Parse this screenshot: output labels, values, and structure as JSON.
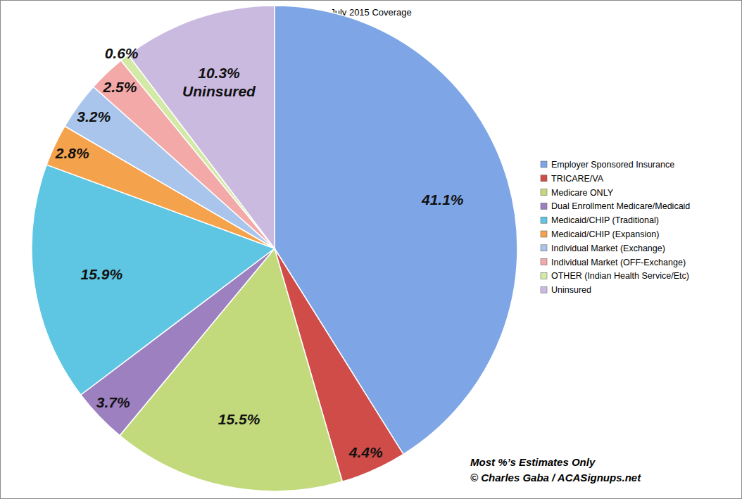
{
  "chart_data": {
    "type": "pie",
    "title": "July 2015 Coverage",
    "categories": [
      "Employer Sponsored Insurance",
      "TRICARE/VA",
      "Medicare ONLY",
      "Dual Enrollment Medicare/Medicaid",
      "Medicaid/CHIP (Traditional)",
      "Medicaid/CHIP (Expansion)",
      "Individual Market (Exchange)",
      "Individual Market (OFF-Exchange)",
      "OTHER (Indian Health Service/Etc)",
      "Uninsured"
    ],
    "values": [
      41.1,
      4.4,
      15.5,
      3.7,
      15.9,
      2.8,
      3.2,
      2.5,
      0.6,
      10.3
    ],
    "value_labels": [
      "41.1%",
      "4.4%",
      "15.5%",
      "3.7%",
      "15.9%",
      "2.8%",
      "3.2%",
      "2.5%",
      "0.6%",
      "10.3%\nUninsured"
    ],
    "colors": [
      "#7ea6e6",
      "#cf4c48",
      "#c2da7c",
      "#9d80c0",
      "#5ec6e2",
      "#f5a24c",
      "#aac5ec",
      "#f2a9a7",
      "#d3e9a6",
      "#cbbae0"
    ],
    "data_labels": true,
    "legend": "right",
    "annotations": [
      "Most %’s Estimates Only",
      "© Charles Gaba / ACASignups.net"
    ]
  }
}
